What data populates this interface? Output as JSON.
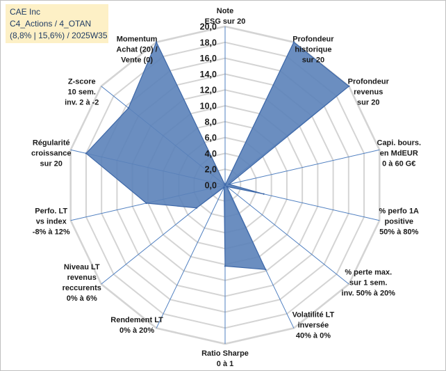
{
  "header": {
    "line1": "CAE Inc",
    "line2": "C4_Actions / 4_OTAN",
    "line3": "(8,8% | 15,6%) / 2025W35"
  },
  "colors": {
    "fill": "#5b82b9",
    "stroke": "#3e68a8",
    "grid": "#d4d4d4",
    "spoke": "#4f7fc0",
    "title_bg": "#fdf0c6"
  },
  "chart_data": {
    "type": "radar",
    "range": [
      0,
      20
    ],
    "tick_step": 2,
    "tick_labels": [
      "0,0",
      "2,0",
      "4,0",
      "6,0",
      "8,0",
      "10,0",
      "12,0",
      "14,0",
      "16,0",
      "18,0",
      "20,0"
    ],
    "axes": [
      {
        "label": [
          "Note",
          "ESG sur 20"
        ],
        "value": 0.0
      },
      {
        "label": [
          "Profondeur",
          "historique",
          "sur 20"
        ],
        "value": 20.0
      },
      {
        "label": [
          "Profondeur",
          "revenus",
          "sur 20"
        ],
        "value": 20.0
      },
      {
        "label": [
          "Capi. bours.",
          "en MdEUR",
          "0 à 60 G€"
        ],
        "value": 0.5
      },
      {
        "label": [
          "% perfo 1A",
          "positive",
          "50% à 80%"
        ],
        "value": 5.0
      },
      {
        "label": [
          "% perte max.",
          "sur 1 sem.",
          "inv. 50% à 20%"
        ],
        "value": 0.3
      },
      {
        "label": [
          "Volatilité LT",
          "inversée",
          "40% à 0%"
        ],
        "value": 11.8
      },
      {
        "label": [
          "Ratio Sharpe",
          "0 à 1"
        ],
        "value": 10.2
      },
      {
        "label": [
          "Rendement LT",
          "0% à 20%"
        ],
        "value": 0.3
      },
      {
        "label": [
          "Niveau LT",
          "revenus",
          "reccurents",
          "0% à 6%"
        ],
        "value": 4.6
      },
      {
        "label": [
          "Perfo. LT",
          "vs index",
          "-8% à 12%"
        ],
        "value": 10.2
      },
      {
        "label": [
          "Régularité",
          "croissance",
          "sur 20"
        ],
        "value": 18.0
      },
      {
        "label": [
          "Z-score",
          "10 sem.",
          "inv. 2 à -2"
        ],
        "value": 15.6
      },
      {
        "label": [
          "Momentum",
          "Achat (20) /",
          "Vente (0)"
        ],
        "value": 20.0
      }
    ]
  }
}
